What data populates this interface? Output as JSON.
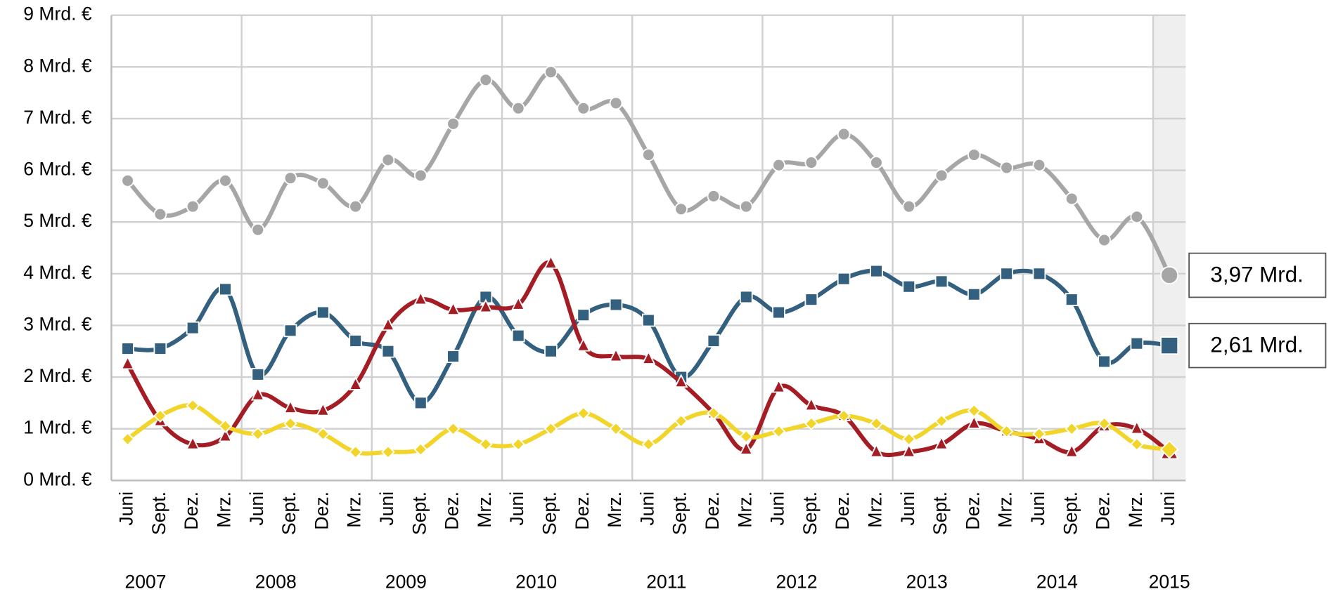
{
  "chart_data": {
    "type": "line",
    "categories": [
      "Juni",
      "Sept.",
      "Dez.",
      "Mrz.",
      "Juni",
      "Sept.",
      "Dez.",
      "Mrz.",
      "Juni",
      "Sept.",
      "Dez.",
      "Mrz.",
      "Juni",
      "Sept.",
      "Dez.",
      "Mrz.",
      "Juni",
      "Sept.",
      "Dez.",
      "Mrz.",
      "Juni",
      "Sept.",
      "Dez.",
      "Mrz.",
      "Juni",
      "Sept.",
      "Dez.",
      "Mrz.",
      "Juni",
      "Sept.",
      "Dez.",
      "Mrz.",
      "Juni"
    ],
    "years": [
      "2007",
      "2008",
      "2009",
      "2010",
      "2011",
      "2012",
      "2013",
      "2014",
      "2015"
    ],
    "ylim": [
      0,
      9
    ],
    "yticks": [
      {
        "value": 0,
        "label": "0 Mrd. €"
      },
      {
        "value": 1,
        "label": "1 Mrd. €"
      },
      {
        "value": 2,
        "label": "2 Mrd. €"
      },
      {
        "value": 3,
        "label": "3 Mrd. €"
      },
      {
        "value": 4,
        "label": "4 Mrd. €"
      },
      {
        "value": 5,
        "label": "5 Mrd. €"
      },
      {
        "value": 6,
        "label": "6 Mrd. €"
      },
      {
        "value": 7,
        "label": "7 Mrd. €"
      },
      {
        "value": 8,
        "label": "8 Mrd. €"
      },
      {
        "value": 9,
        "label": "9 Mrd. €"
      }
    ],
    "grid": true,
    "highlight_last": true,
    "series": [
      {
        "color": "#a6a6a6",
        "marker": "circle",
        "values": [
          5.8,
          5.15,
          5.3,
          5.8,
          4.85,
          5.85,
          5.75,
          5.3,
          6.2,
          5.9,
          6.9,
          7.75,
          7.2,
          7.9,
          7.2,
          7.3,
          6.3,
          5.25,
          5.5,
          5.3,
          6.1,
          6.15,
          6.7,
          6.15,
          5.3,
          5.9,
          6.3,
          6.05,
          6.1,
          5.45,
          4.65,
          5.1,
          3.97
        ],
        "value_labels": [
          null,
          null,
          null,
          null,
          null,
          null,
          null,
          null,
          null,
          null,
          null,
          null,
          null,
          null,
          null,
          null,
          null,
          null,
          null,
          null,
          null,
          null,
          null,
          null,
          null,
          null,
          null,
          null,
          null,
          null,
          null,
          null,
          "3,97 Mrd."
        ]
      },
      {
        "color": "#33607f",
        "marker": "square",
        "values": [
          2.55,
          2.55,
          2.95,
          3.7,
          2.05,
          2.9,
          3.25,
          2.7,
          2.5,
          1.5,
          2.4,
          3.55,
          2.8,
          2.5,
          3.2,
          3.4,
          3.1,
          2.0,
          2.7,
          3.55,
          3.25,
          3.5,
          3.9,
          4.05,
          3.75,
          3.85,
          3.6,
          4.0,
          4.0,
          3.5,
          2.3,
          2.65,
          2.61
        ],
        "value_labels": [
          null,
          null,
          null,
          null,
          null,
          null,
          null,
          null,
          null,
          null,
          null,
          null,
          null,
          null,
          null,
          null,
          null,
          null,
          null,
          null,
          null,
          null,
          null,
          null,
          null,
          null,
          null,
          null,
          null,
          null,
          null,
          null,
          "2,61 Mrd."
        ]
      },
      {
        "color": "#a51d24",
        "marker": "triangle",
        "values": [
          2.25,
          1.15,
          0.7,
          0.85,
          1.65,
          1.4,
          1.35,
          1.85,
          3.0,
          3.5,
          3.3,
          3.35,
          3.4,
          4.2,
          2.6,
          2.4,
          2.35,
          1.9,
          1.3,
          0.6,
          1.8,
          1.45,
          1.25,
          0.55,
          0.55,
          0.7,
          1.1,
          0.95,
          0.8,
          0.55,
          1.05,
          1.0,
          0.55
        ]
      },
      {
        "color": "#f2d52a",
        "marker": "diamond",
        "values": [
          0.8,
          1.25,
          1.45,
          1.05,
          0.9,
          1.1,
          0.9,
          0.55,
          0.55,
          0.6,
          1.0,
          0.7,
          0.7,
          1.0,
          1.3,
          1.0,
          0.7,
          1.15,
          1.3,
          0.85,
          0.95,
          1.1,
          1.25,
          1.1,
          0.8,
          1.15,
          1.35,
          0.95,
          0.9,
          1.0,
          1.1,
          0.7,
          0.6
        ]
      }
    ]
  }
}
